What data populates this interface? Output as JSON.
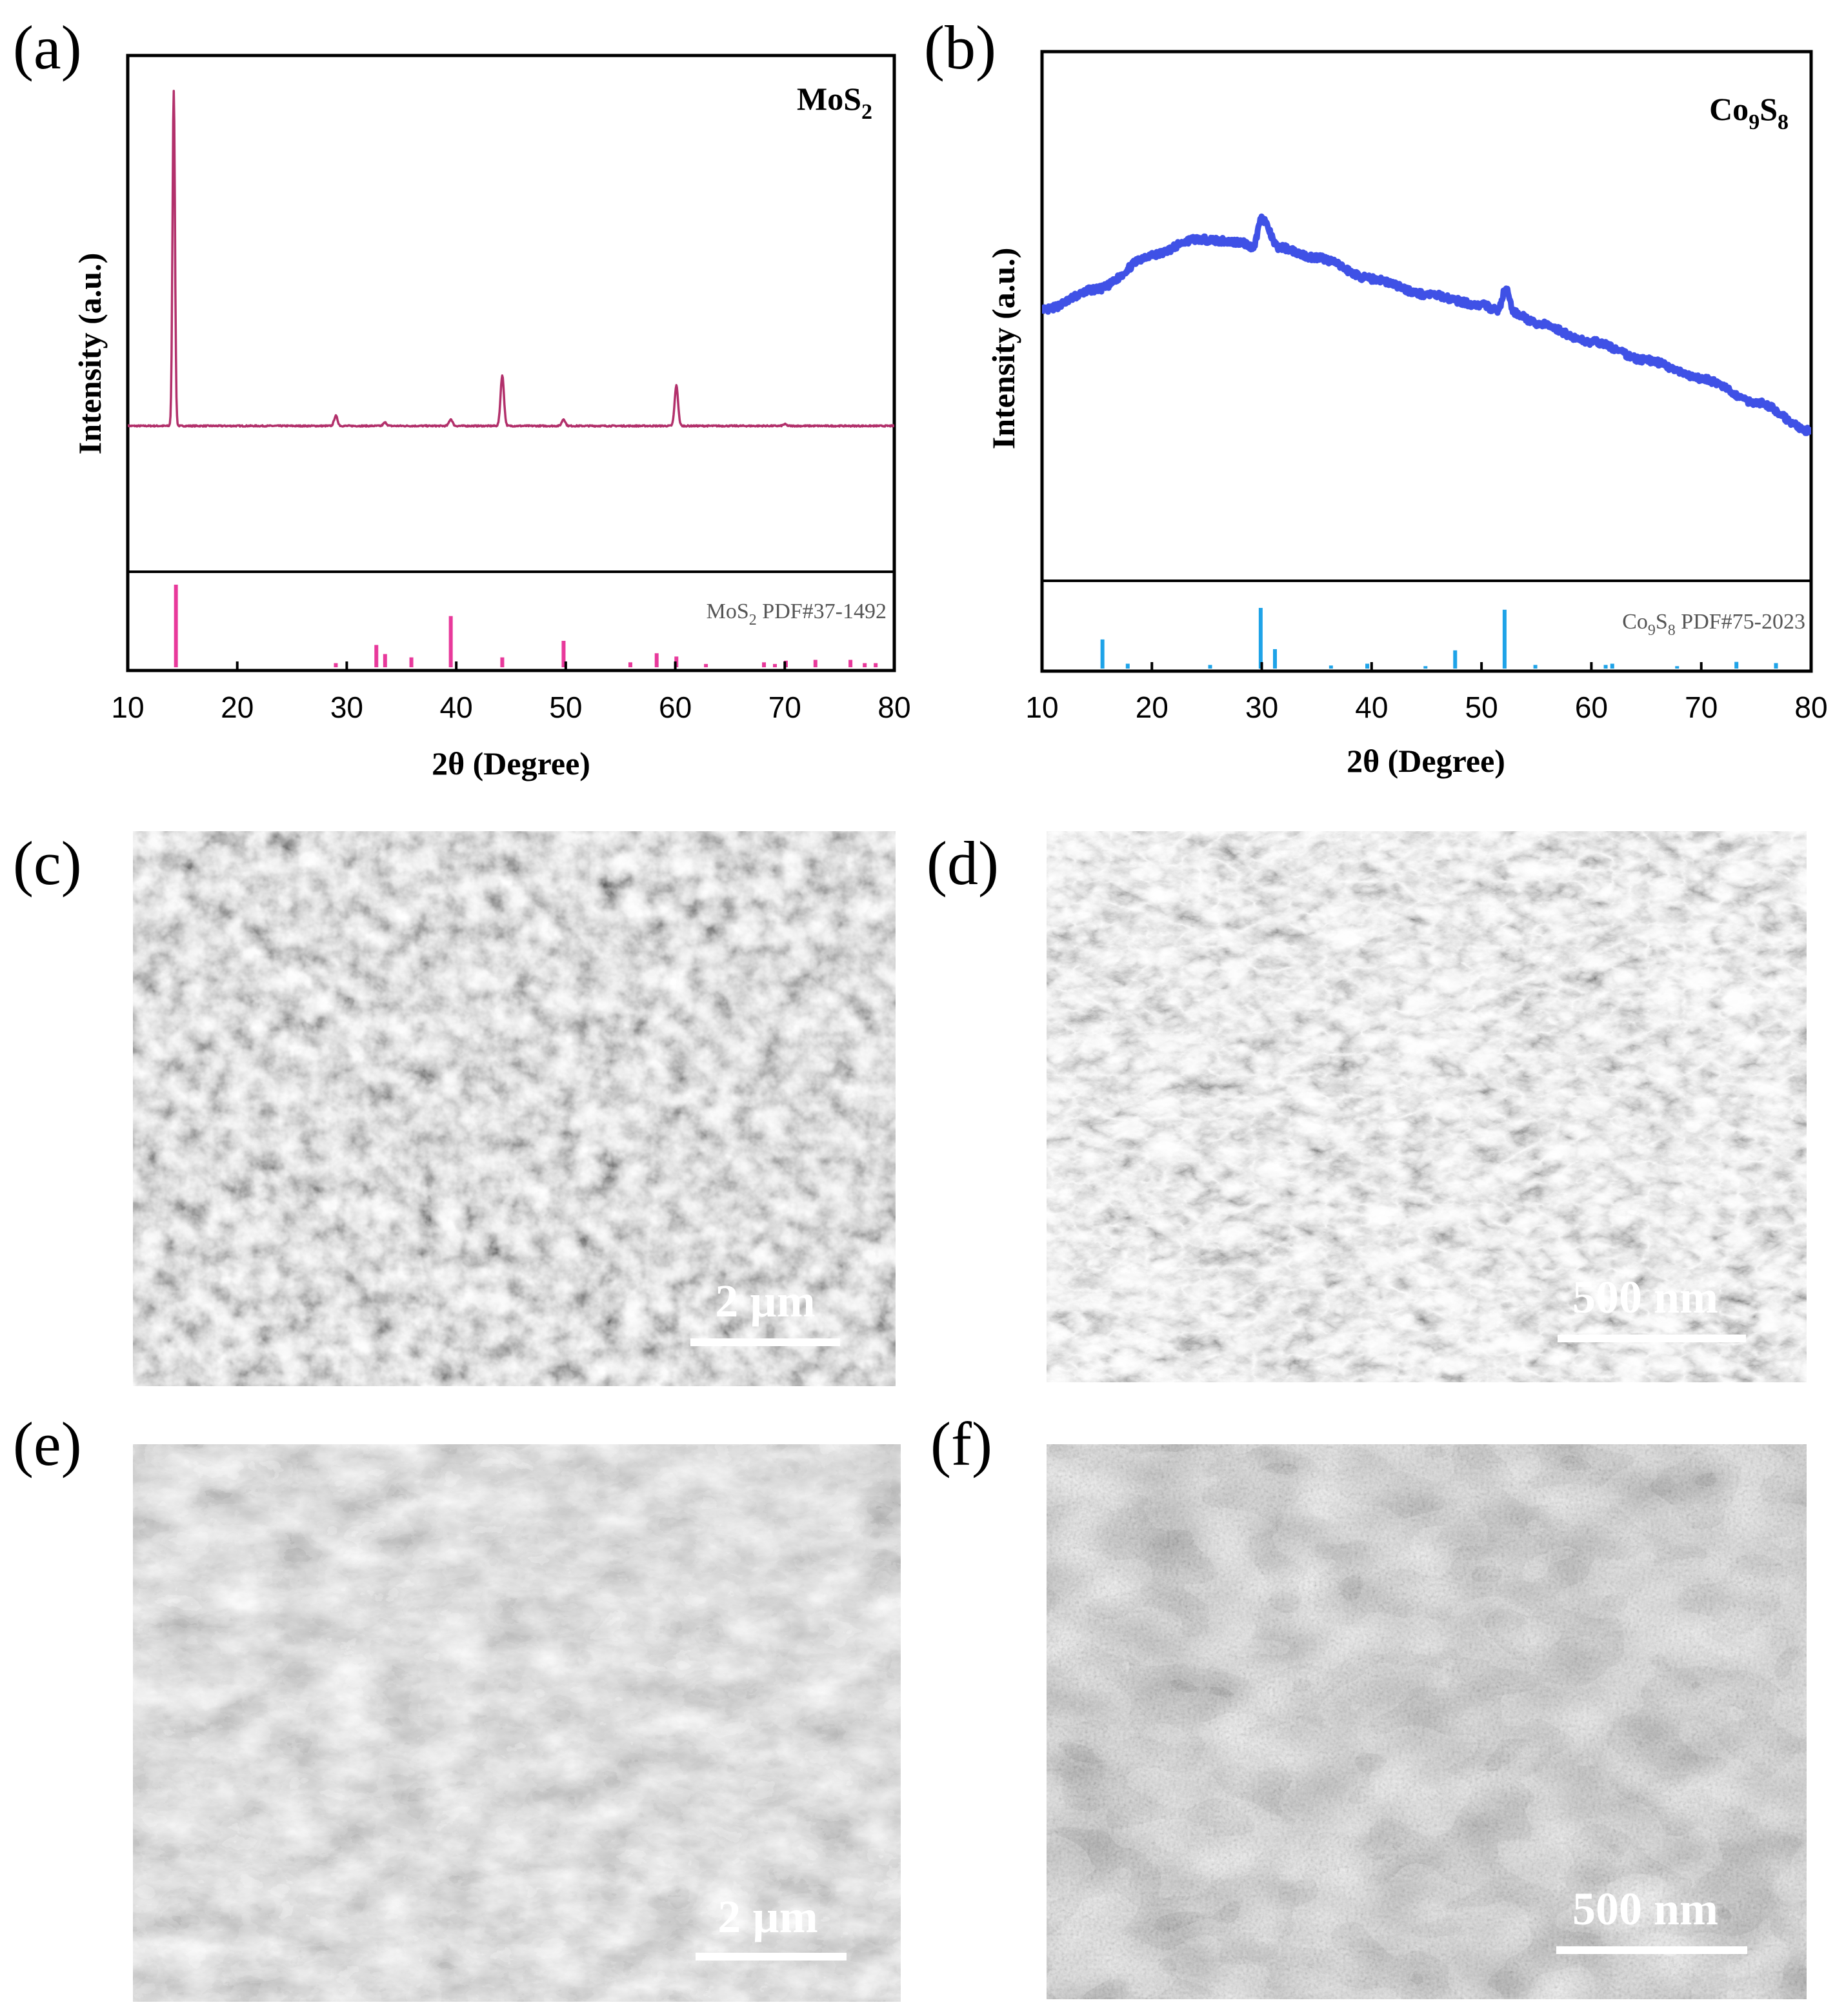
{
  "figure": {
    "panels": [
      {
        "id": "a",
        "label": "(a)"
      },
      {
        "id": "b",
        "label": "(b)"
      },
      {
        "id": "c",
        "label": "(c)"
      },
      {
        "id": "d",
        "label": "(d)"
      },
      {
        "id": "e",
        "label": "(e)"
      },
      {
        "id": "f",
        "label": "(f)"
      }
    ],
    "sem_images": [
      {
        "panel": "c",
        "scale_bar": "2 µm",
        "tone": "grainy-agglomerates"
      },
      {
        "panel": "d",
        "scale_bar": "500 nm",
        "tone": "porous-network"
      },
      {
        "panel": "e",
        "scale_bar": "2 µm",
        "tone": "stacked-flakes"
      },
      {
        "panel": "f",
        "scale_bar": "500 nm",
        "tone": "textured-sheets"
      }
    ]
  },
  "chart_data": [
    {
      "panel": "a",
      "type": "line",
      "xlabel": "2θ (Degree)",
      "ylabel": "Intensity (a.u.)",
      "xlim": [
        10,
        80
      ],
      "xticks": [
        10,
        20,
        30,
        40,
        50,
        60,
        70,
        80
      ],
      "legend": "top-right",
      "sample_label": {
        "main": "MoS",
        "sub": "2"
      },
      "series": [
        {
          "color": "#b2306b",
          "baseline": 0.0,
          "noise": 0.004,
          "points": [
            [
              10,
              0.0
            ],
            [
              14.2,
              1.0
            ],
            [
              29.0,
              0.03
            ],
            [
              33.5,
              0.01
            ],
            [
              39.5,
              0.02
            ],
            [
              44.2,
              0.15
            ],
            [
              49.8,
              0.02
            ],
            [
              60.1,
              0.12
            ],
            [
              70.0,
              0.005
            ],
            [
              80,
              0.0
            ]
          ]
        }
      ],
      "reference": {
        "label": {
          "main": "MoS",
          "sub": "2",
          "tail": " PDF#37-1492"
        },
        "color": "#e8399b",
        "lines": [
          [
            14.4,
            1.0
          ],
          [
            29.0,
            0.05
          ],
          [
            32.7,
            0.27
          ],
          [
            33.5,
            0.16
          ],
          [
            35.9,
            0.12
          ],
          [
            39.5,
            0.62
          ],
          [
            44.2,
            0.12
          ],
          [
            49.8,
            0.32
          ],
          [
            55.9,
            0.06
          ],
          [
            58.3,
            0.17
          ],
          [
            60.1,
            0.13
          ],
          [
            62.8,
            0.04
          ],
          [
            68.1,
            0.06
          ],
          [
            69.1,
            0.04
          ],
          [
            70.1,
            0.08
          ],
          [
            72.8,
            0.09
          ],
          [
            76.0,
            0.09
          ],
          [
            77.3,
            0.05
          ],
          [
            78.3,
            0.05
          ]
        ]
      }
    },
    {
      "panel": "b",
      "type": "line",
      "xlabel": "2θ (Degree)",
      "ylabel": "Intensity (a.u.)",
      "xlim": [
        10,
        80
      ],
      "xticks": [
        10,
        20,
        30,
        40,
        50,
        60,
        70,
        80
      ],
      "legend": "top-right",
      "sample_label": {
        "main": "Co",
        "sub1": "9",
        "mid": "S",
        "sub2": "8"
      },
      "series": [
        {
          "color": "#3f51e6",
          "noise": 0.025,
          "points": [
            [
              10,
              0.58
            ],
            [
              15,
              0.66
            ],
            [
              20,
              0.79
            ],
            [
              24,
              0.85
            ],
            [
              28,
              0.84
            ],
            [
              29.2,
              0.82
            ],
            [
              30.0,
              0.93
            ],
            [
              31.5,
              0.82
            ],
            [
              35,
              0.78
            ],
            [
              40,
              0.7
            ],
            [
              45,
              0.64
            ],
            [
              50,
              0.6
            ],
            [
              51.5,
              0.58
            ],
            [
              52.2,
              0.66
            ],
            [
              53.0,
              0.57
            ],
            [
              55,
              0.53
            ],
            [
              60,
              0.46
            ],
            [
              65,
              0.39
            ],
            [
              70,
              0.32
            ],
            [
              75,
              0.23
            ],
            [
              80,
              0.12
            ]
          ]
        }
      ],
      "reference": {
        "label": {
          "main": "Co",
          "sub1": "9",
          "mid": "S",
          "sub2": "8",
          "tail": " PDF#75-2023"
        },
        "color": "#1ea3e8",
        "lines": [
          [
            15.5,
            0.48
          ],
          [
            17.8,
            0.08
          ],
          [
            25.3,
            0.06
          ],
          [
            29.9,
            1.0
          ],
          [
            31.2,
            0.32
          ],
          [
            36.3,
            0.05
          ],
          [
            39.6,
            0.08
          ],
          [
            44.9,
            0.04
          ],
          [
            47.6,
            0.3
          ],
          [
            52.1,
            0.97
          ],
          [
            54.9,
            0.06
          ],
          [
            61.3,
            0.06
          ],
          [
            61.9,
            0.08
          ],
          [
            67.8,
            0.04
          ],
          [
            73.2,
            0.11
          ],
          [
            76.8,
            0.09
          ]
        ]
      }
    }
  ]
}
